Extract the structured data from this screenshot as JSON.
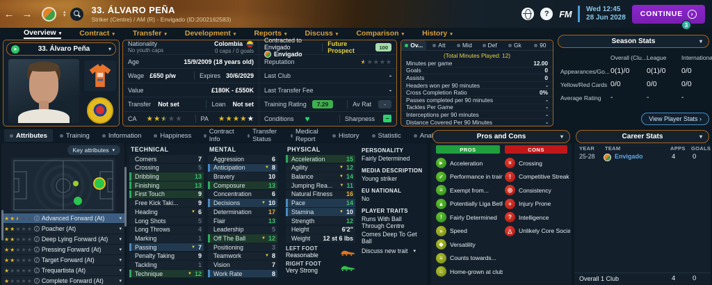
{
  "icons": {
    "chevron_down": "▾",
    "back": "←",
    "forward": "→",
    "arrow_right": "›",
    "spinner_up": "▴",
    "spinner_down": "▾",
    "minus": "–",
    "heart": "♥",
    "info": "i",
    "status_arrow": "➤"
  },
  "header": {
    "title": "33. ÁLVARO PEÑA",
    "subtitle": "Striker (Centre) / AM (R) - Envigado (ID:2002162583)",
    "help_glyph": "?",
    "fm_badge": "FM",
    "clock_day": "Wed 12:45",
    "clock_date": "28 Jun 2028",
    "continue_label": "CONTINUE",
    "notif_count": "3"
  },
  "nav_tabs": {
    "active": 0,
    "items": [
      "Overview",
      "Contract",
      "Transfer",
      "Development",
      "Reports",
      "Discuss",
      "Comparison",
      "History"
    ]
  },
  "player_card": {
    "selector": "33. Álvaro Peña"
  },
  "info": {
    "nationality_label": "Nationality",
    "youth_caps": "No youth caps",
    "nationality_value": "Colombia",
    "caps": "0 caps / 0 goals",
    "age_label": "Age",
    "age_value": "15/9/2009 (18 years old)",
    "wage_label": "Wage",
    "wage_value": "£650 p/w",
    "expires_label": "Expires",
    "expires_value": "30/6/2029",
    "value_label": "Value",
    "value_value": "£180K - £550K",
    "transfer_label": "Transfer",
    "transfer_value": "Not set",
    "loan_label": "Loan",
    "loan_value": "Not set",
    "ca_label": "CA",
    "ca_stars": 2.5,
    "ca_white": 0,
    "pa_label": "PA",
    "pa_stars": 4,
    "pa_white": 1,
    "contracted_line": "Contracted to Envigado",
    "club_name": "Envigado",
    "prospect_label": "Future Prospect",
    "knowledge_badge": "100",
    "reputation_label": "Reputation",
    "reputation_stars": 0.5,
    "last_club_label": "Last Club",
    "last_club_value": "-",
    "last_fee_label": "Last Transfer Fee",
    "last_fee_value": "-",
    "training_label": "Training Rating",
    "training_value": "7.29",
    "avrat_label": "Av Rat",
    "avrat_value": "-",
    "conditions_label": "Conditions",
    "sharpness_label": "Sharpness"
  },
  "mini_stats": {
    "active": 0,
    "tabs": [
      "Ov...",
      "Att",
      "Mid",
      "Def",
      "Gk",
      "90"
    ],
    "subtitle": "(Total Minutes Played: 12)",
    "rows": [
      [
        "Minutes per game",
        "12.00"
      ],
      [
        "Goals",
        "0"
      ],
      [
        "Assists",
        "0"
      ],
      [
        "Headers won per 90 minutes",
        "-"
      ],
      [
        "Cross Completion Ratio",
        "0%"
      ],
      [
        "Passes completed per 90 minutes",
        "-"
      ],
      [
        "Tackles Per Game",
        "-"
      ],
      [
        "Interceptions per 90 minutes",
        "-"
      ],
      [
        "Distance Covered Per 90 Minutes",
        "-"
      ]
    ]
  },
  "season_stats": {
    "title": "Season Stats",
    "columns": [
      "Overall (Clu...",
      "League",
      "International"
    ],
    "rows": [
      {
        "label": "Appearances/Go...",
        "values": [
          "0(1)/0",
          "0(1)/0",
          "0/0"
        ]
      },
      {
        "label": "Yellow/Red Cards",
        "values": [
          "0/0",
          "0/0",
          "0/0"
        ]
      },
      {
        "label": "Average Rating",
        "values": [
          "-",
          "-",
          "-"
        ]
      }
    ],
    "view_button": "View Player Stats ›"
  },
  "sub_tabs": {
    "active": 0,
    "items": [
      "Attributes",
      "Training",
      "Information",
      "Happiness",
      "Contract Info",
      "Transfer Status",
      "Medical Report",
      "History",
      "Statistic",
      "Analysis"
    ]
  },
  "roles_panel": {
    "key_attributes_label": "Key attributes",
    "roles": [
      {
        "stars": 2.5,
        "name": "Advanced Forward (At)",
        "selected": true
      },
      {
        "stars": 2,
        "name": "Poacher (At)"
      },
      {
        "stars": 2,
        "name": "Deep Lying Forward (At)"
      },
      {
        "stars": 2,
        "name": "Pressing Forward (At)"
      },
      {
        "stars": 2,
        "name": "Target Forward (At)"
      },
      {
        "stars": 1,
        "name": "Trequartista (At)"
      },
      {
        "stars": 1,
        "name": "Complete Forward (At)"
      }
    ]
  },
  "attributes": {
    "technical_title": "TECHNICAL",
    "mental_title": "MENTAL",
    "physical_title": "PHYSICAL",
    "technical": [
      {
        "name": "Corners",
        "value": 7
      },
      {
        "name": "Crossing",
        "value": 5
      },
      {
        "name": "Dribbling",
        "value": 13,
        "hl": "green"
      },
      {
        "name": "Finishing",
        "value": 13,
        "hl": "green"
      },
      {
        "name": "First Touch",
        "value": 9,
        "hl": "green"
      },
      {
        "name": "Free Kick Taki...",
        "value": 9
      },
      {
        "name": "Heading",
        "value": 6,
        "arrow": "down"
      },
      {
        "name": "Long Shots",
        "value": 5
      },
      {
        "name": "Long Throws",
        "value": 4
      },
      {
        "name": "Marking",
        "value": 1
      },
      {
        "name": "Passing",
        "value": 7,
        "hl": "blue",
        "arrow": "down"
      },
      {
        "name": "Penalty Taking",
        "value": 9
      },
      {
        "name": "Tackling",
        "value": 1
      },
      {
        "name": "Technique",
        "value": 12,
        "hl": "green",
        "arrow": "down"
      }
    ],
    "mental": [
      {
        "name": "Aggression",
        "value": 6
      },
      {
        "name": "Anticipation",
        "value": 8,
        "hl": "blue",
        "arrow": "down"
      },
      {
        "name": "Bravery",
        "value": 10
      },
      {
        "name": "Composure",
        "value": 13,
        "hl": "green"
      },
      {
        "name": "Concentration",
        "value": 6
      },
      {
        "name": "Decisions",
        "value": 10,
        "hl": "blue",
        "arrow": "down"
      },
      {
        "name": "Determination",
        "value": 17
      },
      {
        "name": "Flair",
        "value": 13
      },
      {
        "name": "Leadership",
        "value": 5
      },
      {
        "name": "Off The Ball",
        "value": 12,
        "hl": "green",
        "arrow": "down"
      },
      {
        "name": "Positioning",
        "value": 3
      },
      {
        "name": "Teamwork",
        "value": 8,
        "arrow": "down"
      },
      {
        "name": "Vision",
        "value": 7
      },
      {
        "name": "Work Rate",
        "value": 8,
        "hl": "blue"
      }
    ],
    "physical": [
      {
        "name": "Acceleration",
        "value": 15,
        "hl": "green"
      },
      {
        "name": "Agility",
        "value": 12,
        "arrow": "down"
      },
      {
        "name": "Balance",
        "value": 14,
        "arrow": "down"
      },
      {
        "name": "Jumping Rea...",
        "value": 11,
        "arrow": "down"
      },
      {
        "name": "Natural Fitness",
        "value": 16
      },
      {
        "name": "Pace",
        "value": 14,
        "hl": "blue"
      },
      {
        "name": "Stamina",
        "value": 10,
        "hl": "blue",
        "arrow": "down"
      },
      {
        "name": "Strength",
        "value": 12
      },
      {
        "name": "Height",
        "value": "6'2\""
      },
      {
        "name": "Weight",
        "value": "12 st 6 lbs"
      }
    ],
    "left_foot_label": "LEFT FOOT",
    "left_foot_value": "Reasonable",
    "right_foot_label": "RIGHT FOOT",
    "right_foot_value": "Very Strong"
  },
  "profile": {
    "personality_label": "PERSONALITY",
    "personality": "Fairly Determined",
    "media_label": "MEDIA DESCRIPTION",
    "media": "Young striker",
    "eu_label": "EU NATIONAL",
    "eu": "No",
    "traits_label": "PLAYER TRAITS",
    "traits": [
      "Runs With Ball Through Centre",
      "Comes Deep To Get Ball"
    ],
    "discuss_label": "Discuss new trait"
  },
  "pros_cons": {
    "title": "Pros and Cons",
    "pros_header": "PROS",
    "cons_header": "CONS",
    "pros": [
      {
        "label": "Acceleration",
        "icon": "sprint-icon",
        "glyph": "►",
        "tone": "green"
      },
      {
        "label": "Performance in training",
        "icon": "training-icon",
        "glyph": "✓",
        "tone": "green"
      },
      {
        "label": "Exempt from...",
        "icon": "document-icon",
        "glyph": "≡",
        "tone": "green"
      },
      {
        "label": "Potentially Liga BetPla...",
        "icon": "chart-up-icon",
        "glyph": "▲",
        "tone": "green"
      },
      {
        "label": "Fairly Determined",
        "icon": "bulb-icon",
        "glyph": "!",
        "tone": "green"
      },
      {
        "label": "Speed",
        "icon": "speed-icon",
        "glyph": "»",
        "tone": "olive"
      },
      {
        "label": "Versatility",
        "icon": "versatility-icon",
        "glyph": "◆",
        "tone": "olive"
      },
      {
        "label": "Counts towards...",
        "icon": "list-icon",
        "glyph": "≡",
        "tone": "olive"
      },
      {
        "label": "Home-grown at club.",
        "icon": "home-icon",
        "glyph": "⌂",
        "tone": "olive"
      }
    ],
    "cons": [
      {
        "label": "Crossing",
        "icon": "cross-ball-icon",
        "glyph": "×",
        "tone": "red"
      },
      {
        "label": "Competitive Streak",
        "icon": "flag-icon",
        "glyph": "!",
        "tone": "red"
      },
      {
        "label": "Consistency",
        "icon": "target-icon",
        "glyph": "◎",
        "tone": "red"
      },
      {
        "label": "Injury Prone",
        "icon": "medical-cross-icon",
        "glyph": "+",
        "tone": "red"
      },
      {
        "label": "Intelligence",
        "icon": "brain-icon",
        "glyph": "?",
        "tone": "red"
      },
      {
        "label": "Unlikely Core Social...",
        "icon": "flask-icon",
        "glyph": "△",
        "tone": "red"
      }
    ]
  },
  "career_stats": {
    "title": "Career Stats",
    "columns": [
      "YEAR",
      "TEAM",
      "APPS",
      "GOALS"
    ],
    "rows": [
      {
        "year": "25-28",
        "team": "Envigado",
        "apps": "4",
        "goals": "0"
      }
    ],
    "footer": {
      "label": "Overall 1 Club",
      "apps": "4",
      "goals": "0"
    }
  }
}
